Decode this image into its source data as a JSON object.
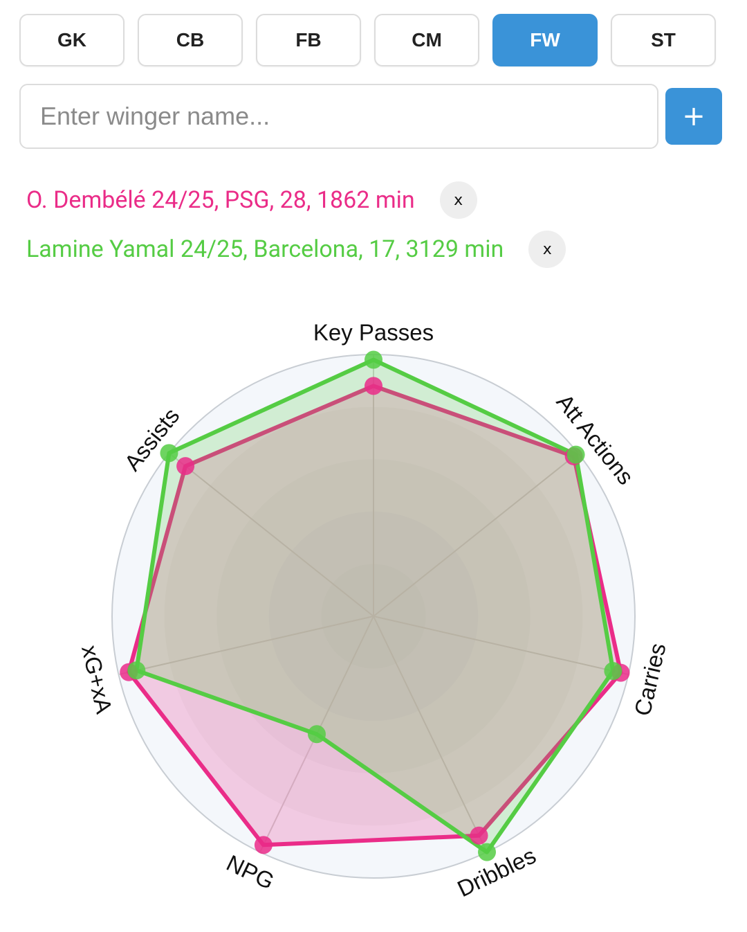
{
  "positions": [
    {
      "label": "GK",
      "active": false
    },
    {
      "label": "CB",
      "active": false
    },
    {
      "label": "FB",
      "active": false
    },
    {
      "label": "CM",
      "active": false
    },
    {
      "label": "FW",
      "active": true
    },
    {
      "label": "ST",
      "active": false
    }
  ],
  "search": {
    "placeholder": "Enter winger name...",
    "add_label": "+"
  },
  "players": [
    {
      "label": "O. Dembélé 24/25, PSG, 28, 1862 min",
      "color": "#ea2c88",
      "remove_label": "x"
    },
    {
      "label": "Lamine Yamal 24/25, Barcelona, 17, 3129 min",
      "color": "#55cc44",
      "remove_label": "x"
    }
  ],
  "chart_data": {
    "type": "radar",
    "axes": [
      "Key Passes",
      "Att Actions",
      "Carries",
      "Dribbles",
      "NPG",
      "xG+xA",
      "Assists"
    ],
    "range": [
      0,
      100
    ],
    "series": [
      {
        "name": "O. Dembélé 24/25",
        "color": "#ea2c88",
        "values": [
          88,
          98,
          97,
          93,
          97,
          96,
          92
        ]
      },
      {
        "name": "Lamine Yamal 24/25",
        "color": "#55cc44",
        "values": [
          98,
          99,
          94,
          100,
          50,
          93,
          100
        ]
      }
    ]
  }
}
